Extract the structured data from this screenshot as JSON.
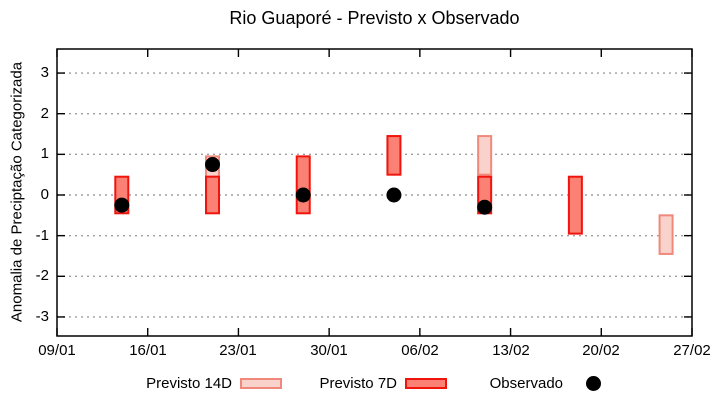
{
  "chart_data": {
    "type": "bar",
    "title": "Rio Guaporé - Previsto x Observado",
    "xlabel": "",
    "ylabel": "Anomalia de Preciptação Categorizada",
    "ylim": [
      -3.45,
      3.57
    ],
    "y_ticks": [
      3,
      2,
      1,
      0,
      -1,
      -2,
      -3
    ],
    "x_ticks": [
      "09/01",
      "16/01",
      "23/01",
      "30/01",
      "06/02",
      "13/02",
      "20/02",
      "27/02"
    ],
    "grid": "horizontal dotted gridlines at integer values",
    "legend_position": "bottom",
    "series": [
      {
        "name": "Previsto 14D",
        "type": "range-bar",
        "fill": "#fad2cc",
        "border": "#f0897b"
      },
      {
        "name": "Previsto 7D",
        "type": "range-bar",
        "fill": "#fa8174",
        "border": "#f0140c"
      },
      {
        "name": "Observado",
        "type": "scatter",
        "color": "#000000"
      }
    ],
    "points": [
      {
        "date": "14/01",
        "previsto_7d": [
          -0.45,
          0.45
        ],
        "observado": -0.25
      },
      {
        "date": "21/01",
        "previsto_14d": [
          0.45,
          0.95
        ],
        "previsto_7d": [
          -0.45,
          0.45
        ],
        "observado": 0.75
      },
      {
        "date": "28/01",
        "previsto_7d": [
          -0.45,
          0.95
        ],
        "observado": 0.0
      },
      {
        "date": "04/02",
        "previsto_7d": [
          0.5,
          1.45
        ],
        "observado": 0.0
      },
      {
        "date": "11/02",
        "previsto_14d": [
          0.5,
          1.45
        ],
        "previsto_7d": [
          -0.45,
          0.45
        ],
        "observado": -0.3
      },
      {
        "date": "18/02",
        "previsto_7d": [
          -0.95,
          0.45
        ]
      },
      {
        "date": "25/02",
        "previsto_14d": [
          -1.45,
          -0.5
        ]
      }
    ]
  },
  "legend": {
    "previsto_14d": "Previsto 14D",
    "previsto_7d": "Previsto 7D",
    "observado": "Observado"
  },
  "colors": {
    "previsto_14d_fill": "#fad2cc",
    "previsto_14d_border": "#f0897b",
    "previsto_7d_fill": "#fa8174",
    "previsto_7d_border": "#f0140c",
    "observado": "#000000",
    "grid": "#9e9e9e",
    "frame": "#000000",
    "background": "#ffffff"
  }
}
